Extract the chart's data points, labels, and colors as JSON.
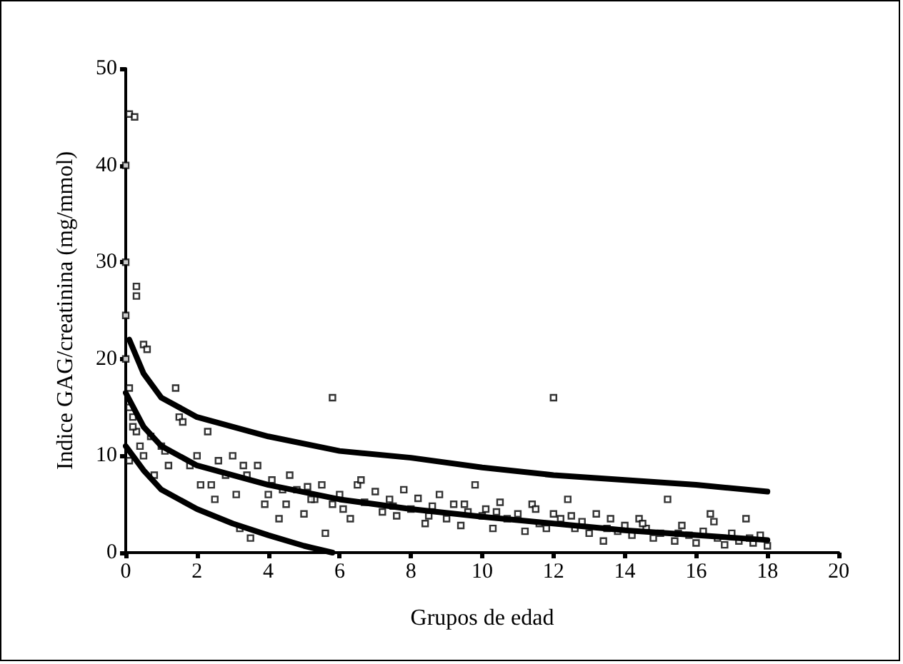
{
  "chart_data": {
    "type": "scatter",
    "xlabel": "Grupos de edad",
    "ylabel": "Indice GAG/creatinina (mg/mmol)",
    "xlim": [
      0,
      20
    ],
    "xticks": [
      0,
      2,
      4,
      6,
      8,
      10,
      12,
      14,
      16,
      18,
      20
    ],
    "ylim": [
      0,
      50
    ],
    "yticks": [
      0,
      10,
      20,
      30,
      40,
      50
    ],
    "grid": false,
    "marker": "square",
    "series": [
      {
        "color": "#000000",
        "x": [
          0.1,
          0.25,
          0,
          0,
          0,
          0,
          0.3,
          0.3,
          0.5,
          0.6,
          0.1,
          0.1,
          0.2,
          0.3,
          0.4,
          0.1,
          0.2,
          0.5,
          0.7,
          0.8,
          1,
          1.2,
          1.4,
          1.5,
          1.6,
          1.8,
          2,
          2.1,
          2.3,
          2.5,
          2.6,
          2.8,
          3,
          3.1,
          3.2,
          3.4,
          3.5,
          3.7,
          3.9,
          4,
          4.1,
          4.3,
          4.5,
          4.6,
          4.8,
          5,
          5.1,
          5.3,
          5.5,
          5.6,
          5.8,
          6,
          6.1,
          6.3,
          6.5,
          6.7,
          7,
          7.2,
          7.4,
          7.6,
          7.8,
          8,
          8.2,
          8.4,
          8.6,
          8.8,
          9,
          9.2,
          9.4,
          9.6,
          9.8,
          10,
          10.1,
          10.3,
          10.5,
          10.7,
          11,
          11.2,
          11.4,
          11.6,
          11.8,
          12,
          12.2,
          12.4,
          12.6,
          12.8,
          13,
          13.2,
          13.4,
          13.6,
          13.8,
          14,
          14.2,
          14.4,
          14.6,
          14.8,
          15,
          15.2,
          15.4,
          15.6,
          15.8,
          16,
          16.2,
          16.4,
          16.6,
          16.8,
          17,
          17.2,
          17.4,
          17.6,
          17.8,
          18,
          1.1,
          2.4,
          3.3,
          4.4,
          5.2,
          6.6,
          7.5,
          8.5,
          9.5,
          10.4,
          11.5,
          12.5,
          13.5,
          14.5,
          15.5,
          16.5,
          17.5,
          12,
          5.8
        ],
        "values": [
          45.3,
          45,
          40,
          30,
          24.5,
          20,
          27.5,
          26.5,
          21.5,
          21,
          17,
          15,
          14,
          12.5,
          11,
          9.5,
          13,
          10,
          12,
          8,
          11,
          9,
          17,
          14,
          13.5,
          9,
          10,
          7,
          12.5,
          5.5,
          9.5,
          8,
          10,
          6,
          2.5,
          8,
          1.5,
          9,
          5,
          6,
          7.5,
          3.5,
          5,
          8,
          6.5,
          4,
          6.8,
          5.5,
          7,
          2,
          5,
          6,
          4.5,
          3.5,
          7,
          5.2,
          6.3,
          4.2,
          5.5,
          3.8,
          6.5,
          4.5,
          5.6,
          3,
          4.8,
          6,
          3.5,
          5,
          2.8,
          4.2,
          7,
          3.8,
          4.5,
          2.5,
          5.2,
          3.5,
          4,
          2.2,
          5,
          3,
          2.5,
          4,
          3.5,
          5.5,
          2.5,
          3.2,
          2,
          4,
          1.2,
          3.5,
          2.2,
          2.8,
          1.8,
          3.5,
          2.5,
          1.5,
          2,
          5.5,
          1.2,
          2.8,
          1.8,
          1,
          2.2,
          4,
          1.5,
          0.8,
          2,
          1.2,
          3.5,
          1,
          1.8,
          0.7,
          10.5,
          7,
          9,
          6.5,
          5.5,
          7.5,
          4.8,
          3.8,
          5,
          4.2,
          4.5,
          3.8,
          2.5,
          3,
          2,
          3.2,
          1.5,
          16,
          16
        ]
      },
      {
        "type": "line",
        "marker": "none",
        "color": "#000000",
        "x": [
          0.1,
          0.5,
          1,
          2,
          4,
          6,
          8,
          10,
          12,
          14,
          16,
          18
        ],
        "values": [
          22,
          18.5,
          16,
          14,
          12,
          10.5,
          9.8,
          8.8,
          8,
          7.5,
          7,
          6.3
        ]
      },
      {
        "type": "line",
        "marker": "none",
        "color": "#000000",
        "x": [
          0,
          0.5,
          1,
          2,
          4,
          6,
          8,
          10,
          12,
          14,
          16,
          18
        ],
        "values": [
          16.5,
          13,
          11,
          9,
          7,
          5.5,
          4.5,
          3.7,
          3,
          2.3,
          1.8,
          1.3
        ]
      },
      {
        "type": "line",
        "marker": "none",
        "color": "#000000",
        "x": [
          0,
          0.5,
          1,
          2,
          3,
          4,
          5,
          5.8
        ],
        "values": [
          11,
          8.5,
          6.5,
          4.5,
          3,
          1.8,
          0.7,
          0
        ]
      }
    ]
  }
}
